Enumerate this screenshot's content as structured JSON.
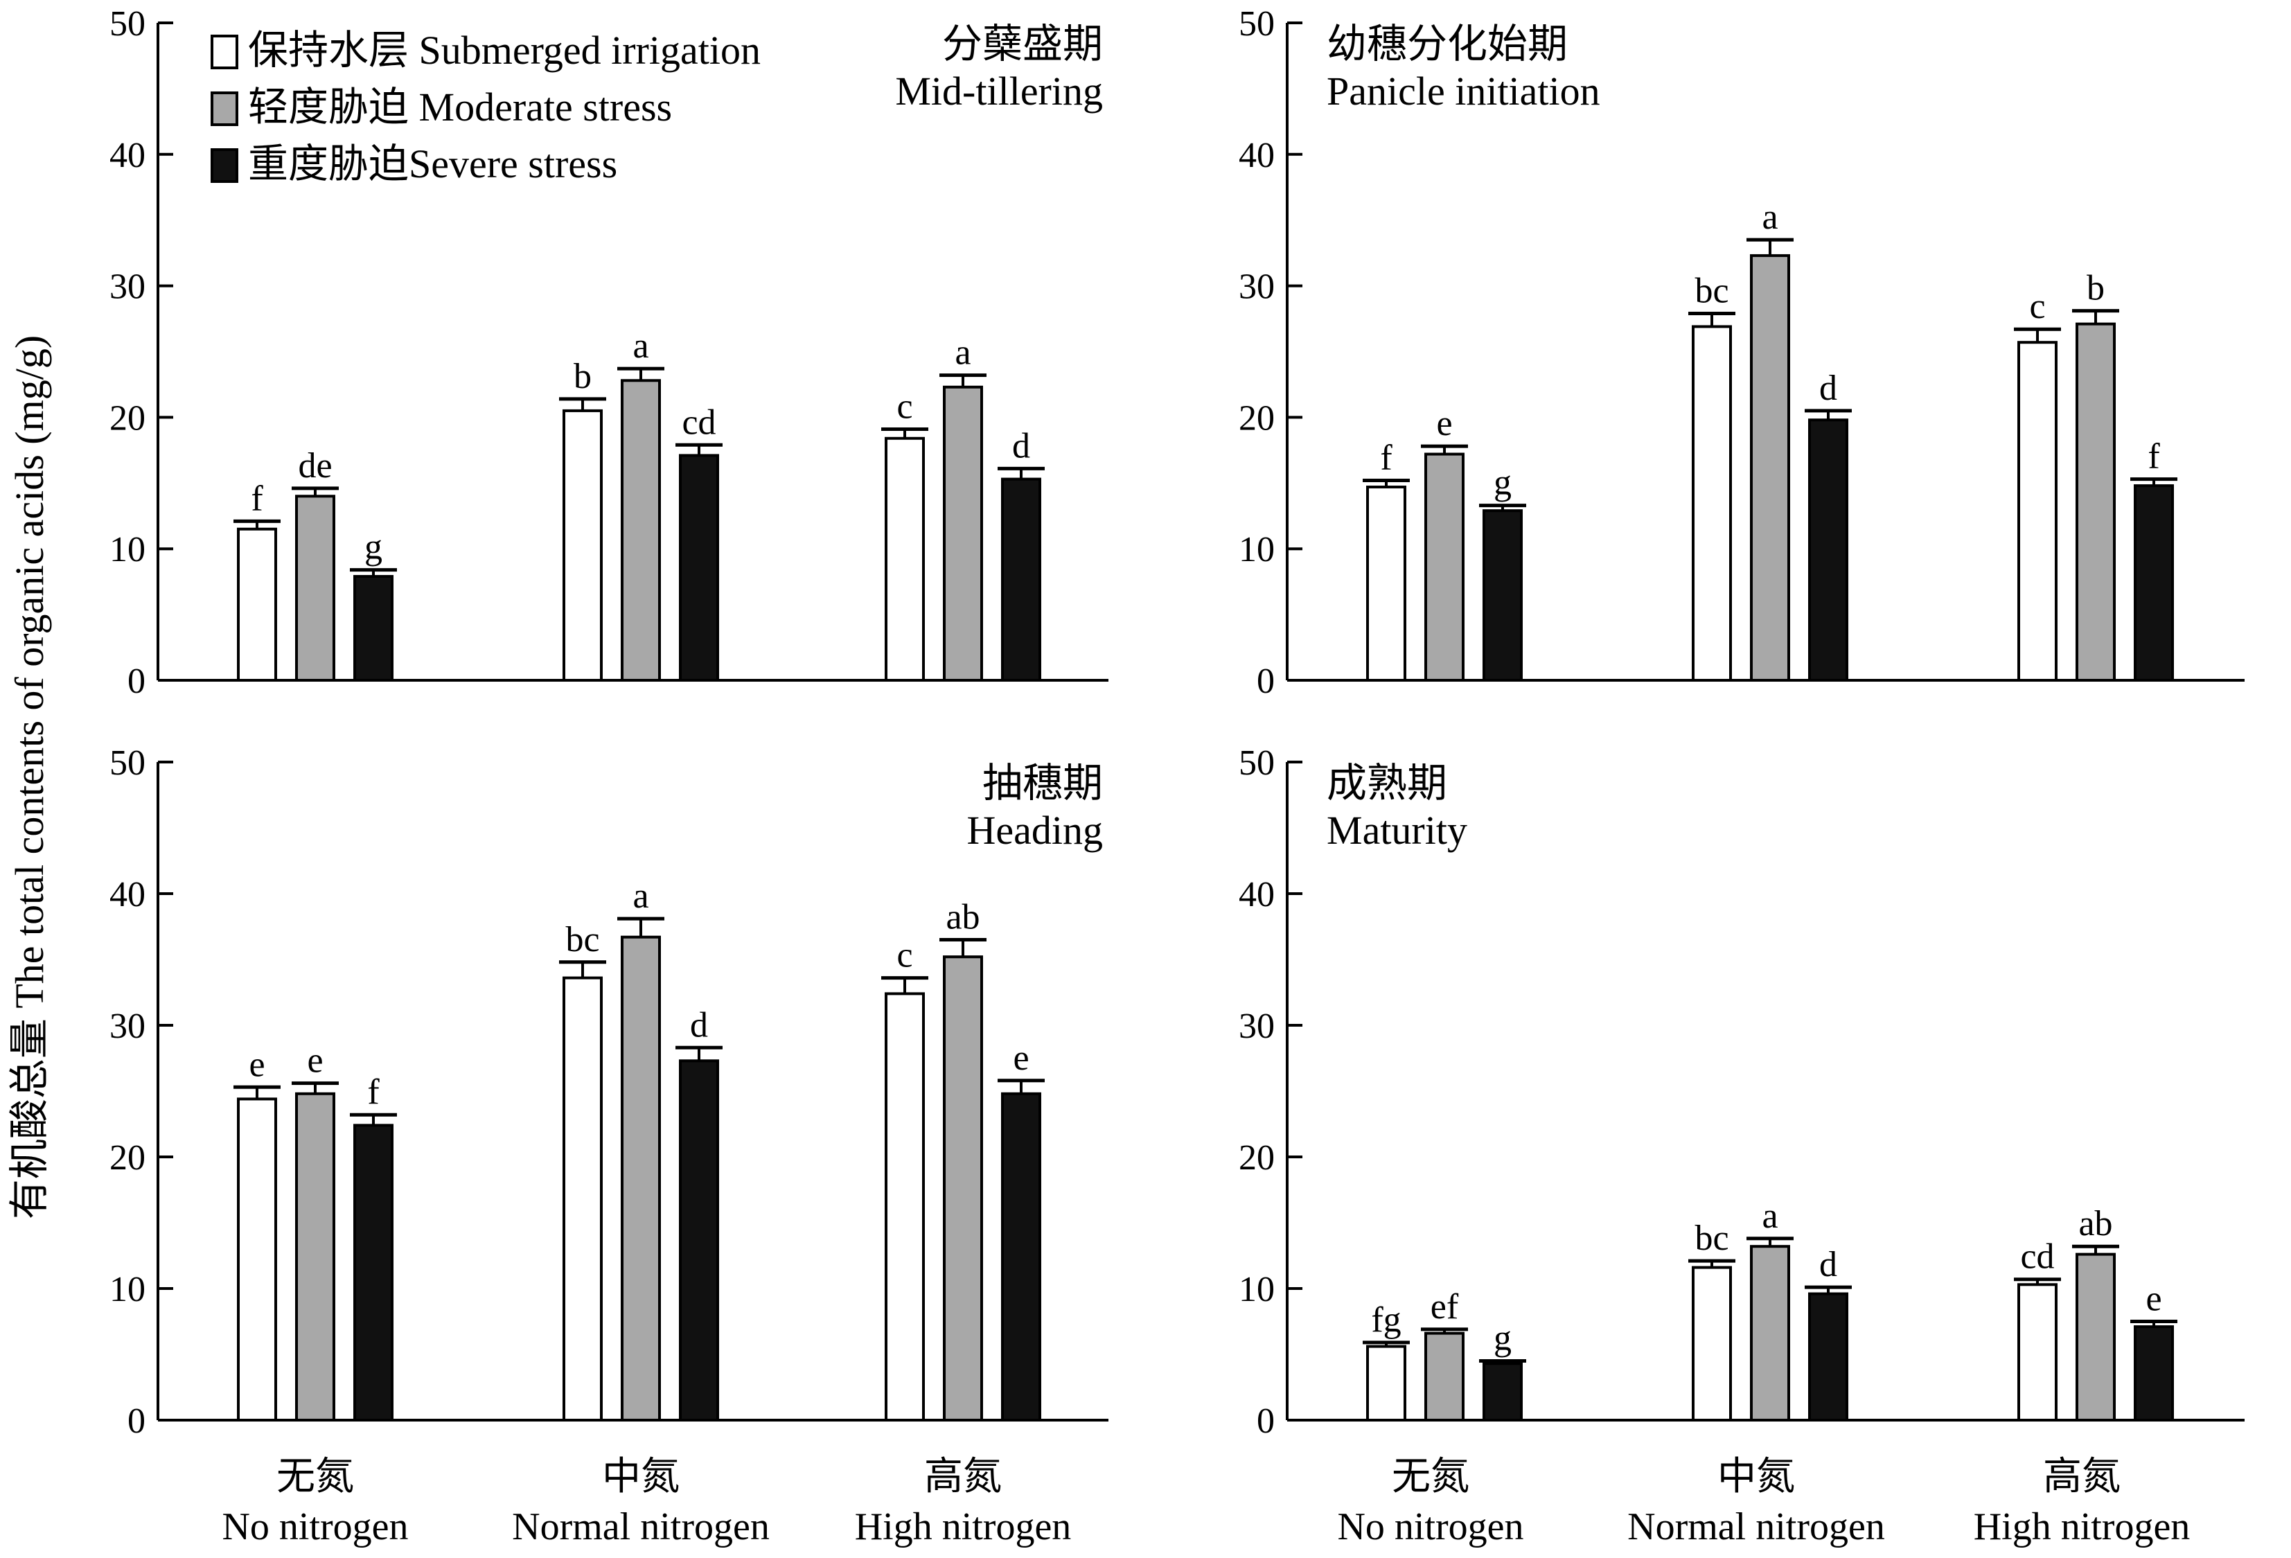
{
  "figure": {
    "ylabel": "有机酸总量 The total contents of organic acids (mg/g)",
    "colors": {
      "series1": "#ffffff",
      "series2": "#a8a8a8",
      "series3": "#111111",
      "axis": "#000000"
    }
  },
  "chart_data": [
    {
      "type": "bar",
      "title_cn": "分蘖盛期",
      "title_en": "Mid-tillering",
      "ylim": [
        0,
        50
      ],
      "yticks": [
        0,
        10,
        20,
        30,
        40,
        50
      ],
      "categories": [
        "No nitrogen",
        "Normal nitrogen",
        "High nitrogen"
      ],
      "series": [
        {
          "name": "保持水层 Submerged irrigation",
          "values": [
            11.5,
            20.5,
            18.4
          ],
          "errors": [
            0.6,
            0.9,
            0.7
          ],
          "labels": [
            "f",
            "b",
            "c"
          ]
        },
        {
          "name": "轻度胁迫 Moderate stress",
          "values": [
            14.0,
            22.8,
            22.3
          ],
          "errors": [
            0.6,
            0.9,
            0.9
          ],
          "labels": [
            "de",
            "a",
            "a"
          ]
        },
        {
          "name": "重度胁迫Severe stress",
          "values": [
            7.9,
            17.1,
            15.3
          ],
          "errors": [
            0.5,
            0.8,
            0.8
          ],
          "labels": [
            "g",
            "cd",
            "d"
          ]
        }
      ]
    },
    {
      "type": "bar",
      "title_cn": "幼穗分化始期",
      "title_en": "Panicle initiation",
      "ylim": [
        0,
        50
      ],
      "yticks": [
        0,
        10,
        20,
        30,
        40,
        50
      ],
      "categories": [
        "No nitrogen",
        "Normal nitrogen",
        "High nitrogen"
      ],
      "series": [
        {
          "name": "保持水层 Submerged irrigation",
          "values": [
            14.7,
            26.9,
            25.7
          ],
          "errors": [
            0.5,
            1.0,
            1.0
          ],
          "labels": [
            "f",
            "bc",
            "c"
          ]
        },
        {
          "name": "轻度胁迫 Moderate stress",
          "values": [
            17.2,
            32.3,
            27.1
          ],
          "errors": [
            0.6,
            1.2,
            1.0
          ],
          "labels": [
            "e",
            "a",
            "b"
          ]
        },
        {
          "name": "重度胁迫Severe stress",
          "values": [
            12.9,
            19.8,
            14.8
          ],
          "errors": [
            0.4,
            0.7,
            0.5
          ],
          "labels": [
            "g",
            "d",
            "f"
          ]
        }
      ]
    },
    {
      "type": "bar",
      "title_cn": "抽穗期",
      "title_en": "Heading",
      "ylim": [
        0,
        50
      ],
      "yticks": [
        0,
        10,
        20,
        30,
        40,
        50
      ],
      "categories": [
        "No nitrogen",
        "Normal nitrogen",
        "High nitrogen"
      ],
      "series": [
        {
          "name": "保持水层 Submerged irrigation",
          "values": [
            24.4,
            33.6,
            32.4
          ],
          "errors": [
            0.9,
            1.2,
            1.2
          ],
          "labels": [
            "e",
            "bc",
            "c"
          ]
        },
        {
          "name": "轻度胁迫 Moderate stress",
          "values": [
            24.8,
            36.7,
            35.2
          ],
          "errors": [
            0.8,
            1.4,
            1.3
          ],
          "labels": [
            "e",
            "a",
            "ab"
          ]
        },
        {
          "name": "重度胁迫Severe stress",
          "values": [
            22.4,
            27.3,
            24.8
          ],
          "errors": [
            0.8,
            1.0,
            1.0
          ],
          "labels": [
            "f",
            "d",
            "e"
          ]
        }
      ]
    },
    {
      "type": "bar",
      "title_cn": "成熟期",
      "title_en": "Maturity",
      "ylim": [
        0,
        50
      ],
      "yticks": [
        0,
        10,
        20,
        30,
        40,
        50
      ],
      "categories": [
        "No nitrogen",
        "Normal nitrogen",
        "High nitrogen"
      ],
      "series": [
        {
          "name": "保持水层 Submerged irrigation",
          "values": [
            5.6,
            11.6,
            10.3
          ],
          "errors": [
            0.3,
            0.5,
            0.4
          ],
          "labels": [
            "fg",
            "bc",
            "cd"
          ]
        },
        {
          "name": "轻度胁迫 Moderate stress",
          "values": [
            6.6,
            13.2,
            12.6
          ],
          "errors": [
            0.3,
            0.6,
            0.6
          ],
          "labels": [
            "ef",
            "a",
            "ab"
          ]
        },
        {
          "name": "重度胁迫Severe stress",
          "values": [
            4.3,
            9.6,
            7.1
          ],
          "errors": [
            0.2,
            0.5,
            0.4
          ],
          "labels": [
            "g",
            "d",
            "e"
          ]
        }
      ]
    }
  ],
  "x_axis_labels": [
    {
      "cn": "无氮",
      "en": "No nitrogen"
    },
    {
      "cn": "中氮",
      "en": "Normal nitrogen"
    },
    {
      "cn": "高氮",
      "en": "High nitrogen"
    }
  ]
}
